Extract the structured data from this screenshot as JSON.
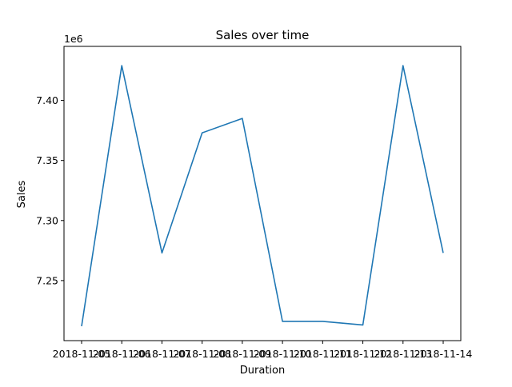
{
  "chart_data": {
    "type": "line",
    "title": "Sales over time",
    "xlabel": "Duration",
    "ylabel": "Sales",
    "y_offset_label": "1e6",
    "x": [
      "2018-11-05",
      "2018-11-06",
      "2018-11-07",
      "2018-11-08",
      "2018-11-09",
      "2018-11-10",
      "2018-11-11",
      "2018-11-12",
      "2018-11-13",
      "2018-11-14"
    ],
    "series": [
      {
        "color": "#1f77b4",
        "values": [
          7212000,
          7429000,
          7273000,
          7373000,
          7385000,
          7216000,
          7216000,
          7213000,
          7429000,
          7273000
        ]
      }
    ],
    "ylim": [
      7200000,
      7445000
    ],
    "y_ticks": [
      7250000,
      7300000,
      7350000,
      7400000
    ],
    "y_tick_labels": [
      "7.25",
      "7.30",
      "7.35",
      "7.40"
    ],
    "grid": false,
    "legend": "none"
  }
}
